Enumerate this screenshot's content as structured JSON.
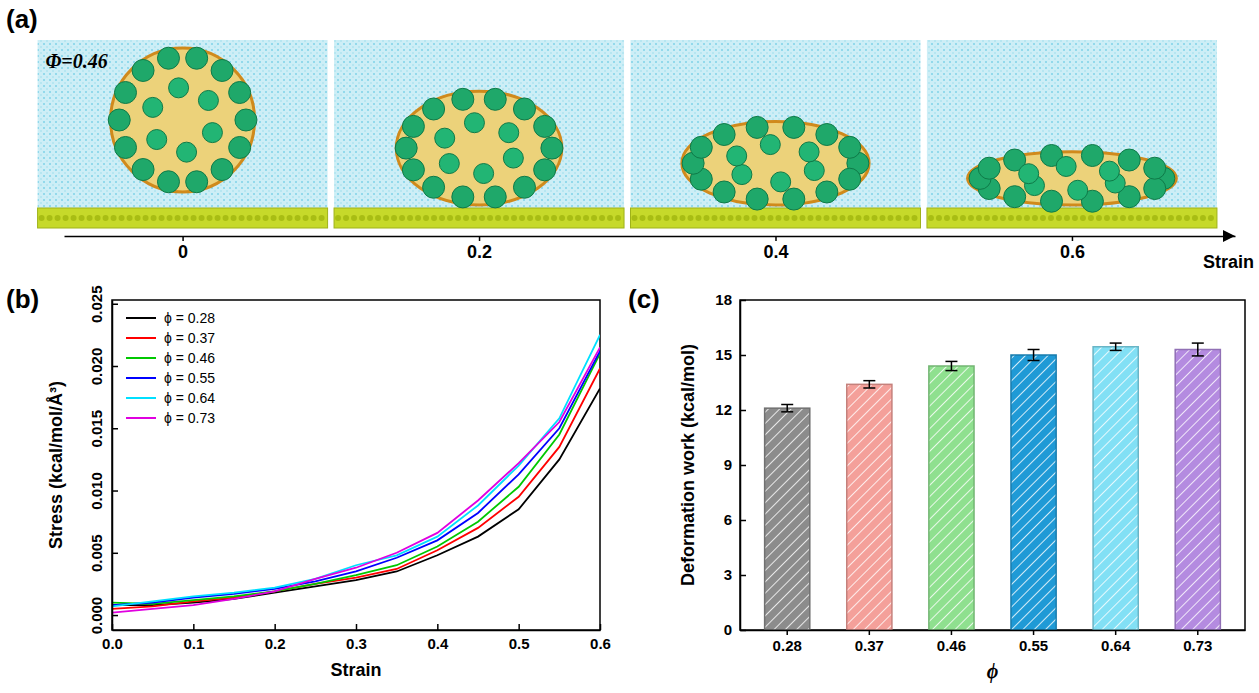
{
  "chart_data": [
    {
      "type": "image_strip",
      "panel": "(a)",
      "annotation": "Φ=0.46",
      "x_label": "Strain",
      "xlim": [
        -0.08,
        0.71
      ],
      "xticks": [
        0,
        0.2,
        0.4,
        0.6
      ]
    },
    {
      "type": "line",
      "panel": "(b)",
      "x_label": "Strain",
      "y_label": "Stress (kcal/mol/Å³)",
      "x": [
        0,
        0.05,
        0.1,
        0.15,
        0.2,
        0.25,
        0.3,
        0.35,
        0.4,
        0.45,
        0.5,
        0.55,
        0.6
      ],
      "xlim": [
        0,
        0.6
      ],
      "xticks": [
        {
          "value": 0,
          "label": "0.0"
        },
        0.1,
        0.2,
        0.3,
        0.4,
        0.5,
        0.6
      ],
      "ylim": [
        -0.0012,
        0.0253
      ],
      "yticks": [
        {
          "value": 0,
          "label": "0.000"
        },
        0.005,
        {
          "value": 0.01,
          "label": "0.010"
        },
        0.015,
        {
          "value": 0.02,
          "label": "0.020"
        },
        0.025
      ],
      "legend": "upper left",
      "series": [
        {
          "name": "ϕ = 0.28",
          "color": "#000000",
          "values": [
            0.0008,
            0.0008,
            0.001,
            0.0013,
            0.0018,
            0.0023,
            0.0028,
            0.0035,
            0.0048,
            0.0063,
            0.0085,
            0.0125,
            0.0182
          ]
        },
        {
          "name": "ϕ = 0.37",
          "color": "#ff0000",
          "values": [
            0.0005,
            0.0007,
            0.0011,
            0.0014,
            0.0019,
            0.0025,
            0.003,
            0.0037,
            0.0052,
            0.007,
            0.0095,
            0.0135,
            0.0198
          ]
        },
        {
          "name": "ϕ = 0.46",
          "color": "#00c800",
          "values": [
            0.001,
            0.0009,
            0.0012,
            0.0015,
            0.0019,
            0.0025,
            0.0032,
            0.004,
            0.0055,
            0.0075,
            0.0103,
            0.0145,
            0.021
          ]
        },
        {
          "name": "ϕ = 0.55",
          "color": "#0000ff",
          "values": [
            0.0008,
            0.001,
            0.0014,
            0.0017,
            0.0021,
            0.0027,
            0.0035,
            0.0046,
            0.006,
            0.0082,
            0.0113,
            0.015,
            0.0212
          ]
        },
        {
          "name": "ϕ = 0.64",
          "color": "#00e0ff",
          "values": [
            0.0007,
            0.0011,
            0.0015,
            0.0018,
            0.0022,
            0.0029,
            0.004,
            0.0048,
            0.0063,
            0.0088,
            0.012,
            0.0158,
            0.0225
          ]
        },
        {
          "name": "ϕ = 0.73",
          "color": "#e000e0",
          "values": [
            0.0002,
            0.0005,
            0.0008,
            0.0013,
            0.0019,
            0.0029,
            0.0038,
            0.005,
            0.0066,
            0.0092,
            0.0122,
            0.0155,
            0.0215
          ]
        }
      ]
    },
    {
      "type": "bar",
      "panel": "(c)",
      "x_label": "ϕ",
      "y_label": "Deformation work (kcal/mol)",
      "categories": [
        "0.28",
        "0.37",
        "0.46",
        "0.55",
        "0.64",
        "0.73"
      ],
      "values": [
        12.1,
        13.4,
        14.4,
        15.0,
        15.45,
        15.3
      ],
      "errors": [
        0.2,
        0.2,
        0.25,
        0.3,
        0.2,
        0.35
      ],
      "colors": [
        "#8c8c8c",
        "#f4a09a",
        "#8fe08f",
        "#1f9ad6",
        "#82e0f5",
        "#b48be0"
      ],
      "ylim": [
        0,
        18
      ],
      "yticks": [
        0,
        3,
        6,
        9,
        12,
        15,
        18
      ]
    }
  ]
}
